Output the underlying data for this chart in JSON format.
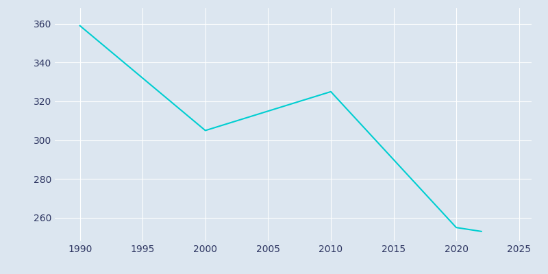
{
  "years": [
    1990,
    2000,
    2005,
    2010,
    2020,
    2021,
    2022
  ],
  "population": [
    359,
    305,
    315,
    325,
    255,
    254,
    253
  ],
  "line_color": "#00CED1",
  "bg_color": "#dce6f0",
  "plot_bg_color": "#dce6f0",
  "tick_color": "#2d3561",
  "grid_color": "#ffffff",
  "xlim": [
    1988,
    2026
  ],
  "ylim": [
    248,
    368
  ],
  "xticks": [
    1990,
    1995,
    2000,
    2005,
    2010,
    2015,
    2020,
    2025
  ],
  "yticks": [
    260,
    280,
    300,
    320,
    340,
    360
  ]
}
